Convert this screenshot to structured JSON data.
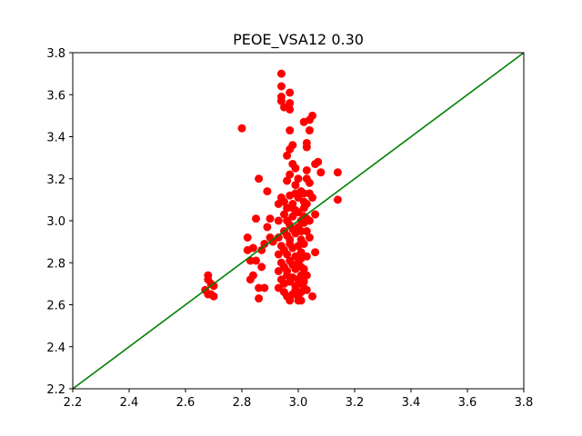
{
  "chart_data": {
    "type": "scatter",
    "title": "PEOE_VSA12 0.30",
    "xlabel": "",
    "ylabel": "",
    "xlim": [
      2.2,
      3.8
    ],
    "ylim": [
      2.2,
      3.8
    ],
    "xticks": [
      "2.2",
      "2.4",
      "2.6",
      "2.8",
      "3.0",
      "3.2",
      "3.4",
      "3.6",
      "3.8"
    ],
    "yticks": [
      "2.2",
      "2.4",
      "2.6",
      "2.8",
      "3.0",
      "3.2",
      "3.4",
      "3.6",
      "3.8"
    ],
    "grid": false,
    "reference_line": {
      "from": [
        2.2,
        2.2
      ],
      "to": [
        3.8,
        3.8
      ],
      "color": "#008000"
    },
    "point_color": "#ff0000",
    "points": [
      [
        2.67,
        2.67
      ],
      [
        2.68,
        2.74
      ],
      [
        2.68,
        2.72
      ],
      [
        2.69,
        2.7
      ],
      [
        2.69,
        2.65
      ],
      [
        2.7,
        2.64
      ],
      [
        2.7,
        2.69
      ],
      [
        2.68,
        2.65
      ],
      [
        2.8,
        3.44
      ],
      [
        2.82,
        2.92
      ],
      [
        2.82,
        2.86
      ],
      [
        2.83,
        2.81
      ],
      [
        2.83,
        2.72
      ],
      [
        2.84,
        2.87
      ],
      [
        2.84,
        2.74
      ],
      [
        2.85,
        3.01
      ],
      [
        2.85,
        2.81
      ],
      [
        2.86,
        2.68
      ],
      [
        2.86,
        2.63
      ],
      [
        2.86,
        3.2
      ],
      [
        2.87,
        2.78
      ],
      [
        2.87,
        2.86
      ],
      [
        2.88,
        2.68
      ],
      [
        2.88,
        2.89
      ],
      [
        2.89,
        2.97
      ],
      [
        2.89,
        3.14
      ],
      [
        2.9,
        2.92
      ],
      [
        2.9,
        3.01
      ],
      [
        2.91,
        2.9
      ],
      [
        2.94,
        3.7
      ],
      [
        2.94,
        3.64
      ],
      [
        2.94,
        3.59
      ],
      [
        2.94,
        3.57
      ],
      [
        2.95,
        3.54
      ],
      [
        2.97,
        3.61
      ],
      [
        2.97,
        3.56
      ],
      [
        2.97,
        3.53
      ],
      [
        2.96,
        3.31
      ],
      [
        2.97,
        3.34
      ],
      [
        2.97,
        3.43
      ],
      [
        2.98,
        3.36
      ],
      [
        2.97,
        3.22
      ],
      [
        2.99,
        3.25
      ],
      [
        2.96,
        3.19
      ],
      [
        2.98,
        3.27
      ],
      [
        2.94,
        3.11
      ],
      [
        2.95,
        3.09
      ],
      [
        2.96,
        3.06
      ],
      [
        2.97,
        3.12
      ],
      [
        2.98,
        3.08
      ],
      [
        2.99,
        3.13
      ],
      [
        3.0,
        3.11
      ],
      [
        3.01,
        3.14
      ],
      [
        2.95,
        3.03
      ],
      [
        2.96,
        3.0
      ],
      [
        2.97,
        2.98
      ],
      [
        2.98,
        3.02
      ],
      [
        2.99,
        3.05
      ],
      [
        3.0,
        3.04
      ],
      [
        3.01,
        3.0
      ],
      [
        3.02,
        3.02
      ],
      [
        2.95,
        2.95
      ],
      [
        2.96,
        2.93
      ],
      [
        2.97,
        2.91
      ],
      [
        2.98,
        2.96
      ],
      [
        2.99,
        2.94
      ],
      [
        3.0,
        2.97
      ],
      [
        3.01,
        2.95
      ],
      [
        3.02,
        2.99
      ],
      [
        2.94,
        2.88
      ],
      [
        2.95,
        2.86
      ],
      [
        2.96,
        2.84
      ],
      [
        2.97,
        2.89
      ],
      [
        2.98,
        2.87
      ],
      [
        2.99,
        2.83
      ],
      [
        3.0,
        2.88
      ],
      [
        3.01,
        2.85
      ],
      [
        2.94,
        2.8
      ],
      [
        2.95,
        2.78
      ],
      [
        2.96,
        2.76
      ],
      [
        2.97,
        2.81
      ],
      [
        2.98,
        2.79
      ],
      [
        2.99,
        2.77
      ],
      [
        3.0,
        2.8
      ],
      [
        3.01,
        2.78
      ],
      [
        2.94,
        2.72
      ],
      [
        2.95,
        2.7
      ],
      [
        2.96,
        2.74
      ],
      [
        2.97,
        2.71
      ],
      [
        2.98,
        2.73
      ],
      [
        2.99,
        2.69
      ],
      [
        3.0,
        2.72
      ],
      [
        3.01,
        2.7
      ],
      [
        2.95,
        2.66
      ],
      [
        2.96,
        2.64
      ],
      [
        2.97,
        2.63
      ],
      [
        2.98,
        2.65
      ],
      [
        2.99,
        2.67
      ],
      [
        3.0,
        2.64
      ],
      [
        3.01,
        2.66
      ],
      [
        3.02,
        2.68
      ],
      [
        3.02,
        3.47
      ],
      [
        3.03,
        3.37
      ],
      [
        3.03,
        3.35
      ],
      [
        3.04,
        3.43
      ],
      [
        3.04,
        3.48
      ],
      [
        3.05,
        3.5
      ],
      [
        3.03,
        3.24
      ],
      [
        3.03,
        3.2
      ],
      [
        3.04,
        3.18
      ],
      [
        3.06,
        3.27
      ],
      [
        3.07,
        3.28
      ],
      [
        3.08,
        3.23
      ],
      [
        3.04,
        3.13
      ],
      [
        3.05,
        3.11
      ],
      [
        3.03,
        3.08
      ],
      [
        3.02,
        3.06
      ],
      [
        3.03,
        3.01
      ],
      [
        3.04,
        3.0
      ],
      [
        3.06,
        3.03
      ],
      [
        3.03,
        2.95
      ],
      [
        3.04,
        2.92
      ],
      [
        3.02,
        2.89
      ],
      [
        3.03,
        2.83
      ],
      [
        3.06,
        2.85
      ],
      [
        3.02,
        2.77
      ],
      [
        3.03,
        2.74
      ],
      [
        3.02,
        2.71
      ],
      [
        3.03,
        2.67
      ],
      [
        3.05,
        2.64
      ],
      [
        3.14,
        3.23
      ],
      [
        3.14,
        3.1
      ],
      [
        3.01,
        2.62
      ],
      [
        2.97,
        2.62
      ],
      [
        3.0,
        2.62
      ],
      [
        2.93,
        2.68
      ],
      [
        2.93,
        2.76
      ],
      [
        2.93,
        2.84
      ],
      [
        2.93,
        2.92
      ],
      [
        2.93,
        3.0
      ],
      [
        2.93,
        3.08
      ],
      [
        3.02,
        3.13
      ],
      [
        3.02,
        3.09
      ],
      [
        3.01,
        2.91
      ],
      [
        3.01,
        2.82
      ],
      [
        3.01,
        2.74
      ],
      [
        2.99,
        3.17
      ],
      [
        3.0,
        3.2
      ],
      [
        2.98,
        3.06
      ]
    ]
  }
}
